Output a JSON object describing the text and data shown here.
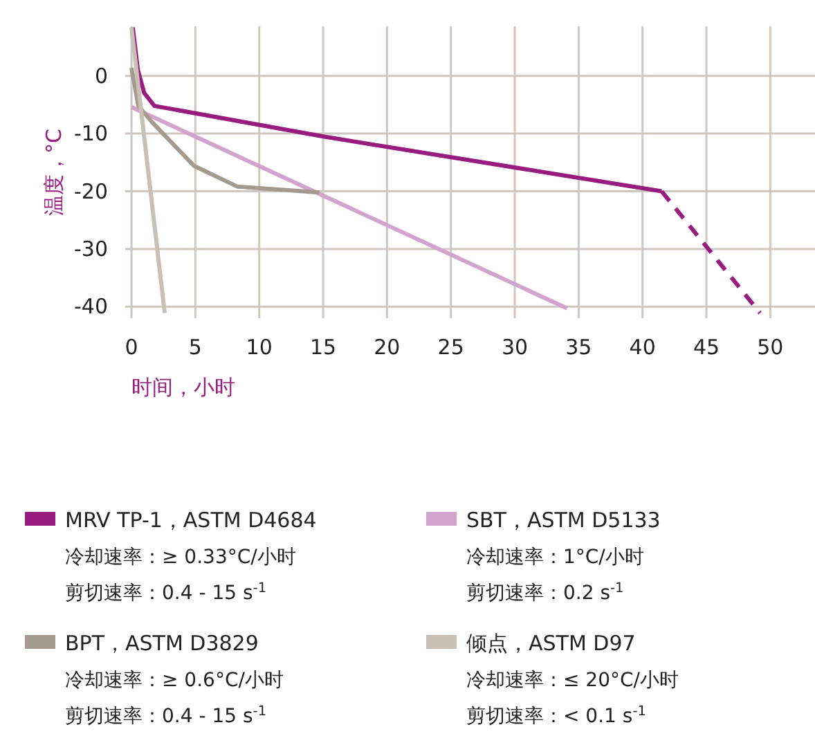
{
  "chart_data": {
    "type": "line",
    "xlabel": "时间，小时",
    "ylabel": "温度，°C",
    "xlim": [
      -0.5,
      53.5
    ],
    "ylim": [
      -42,
      8.6
    ],
    "xticks": [
      0,
      5,
      10,
      15,
      20,
      25,
      30,
      35,
      40,
      45,
      50
    ],
    "yticks": [
      0,
      -10,
      -20,
      -30,
      -40
    ],
    "grid": true,
    "legend": "bottom",
    "marker": "none",
    "series": [
      {
        "name": "MRV TP-1，ASTM D4684",
        "color": "#981b7f",
        "x": [
          0.1,
          0.5,
          1,
          1.8,
          15,
          41.5
        ],
        "values": [
          8.4,
          1,
          -3,
          -5.2,
          -10.5,
          -20
        ]
      },
      {
        "name": "SBT，ASTM D5133",
        "color": "#d3a3cf",
        "x": [
          0,
          34.1
        ],
        "values": [
          -5.4,
          -40.3
        ]
      },
      {
        "name": "BPT，ASTM D3829",
        "color": "#a59a8e",
        "x": [
          0,
          0.54,
          1.6,
          4.9,
          8.3,
          14.7
        ],
        "values": [
          1.4,
          -5.2,
          -8,
          -15.6,
          -19.2,
          -20.2
        ]
      },
      {
        "name": "倾点，ASTM D97",
        "color": "#c9c0b4",
        "x": [
          0,
          2.6
        ],
        "values": [
          8.4,
          -41.1
        ]
      },
      {
        "color": "#981b7f",
        "line_style": "dashed",
        "x": [
          41.5,
          49.2
        ],
        "values": [
          -20,
          -41.1
        ]
      }
    ],
    "annotations": [
      "冷却速率：≥ 0.33°C/小时",
      "剪切速率：0.4 - 15 s$^{-1}$",
      "冷却速率：1°C/小时",
      "剪切速率：0.2 s$^{-1}$",
      "冷却速率：≥ 0.6°C/小时",
      "剪切速率：0.4 - 15 s$^{-1}$",
      "冷却速率：≤ 20°C/小时",
      "剪切速率：< 0.1 s$^{-1}$"
    ]
  }
}
